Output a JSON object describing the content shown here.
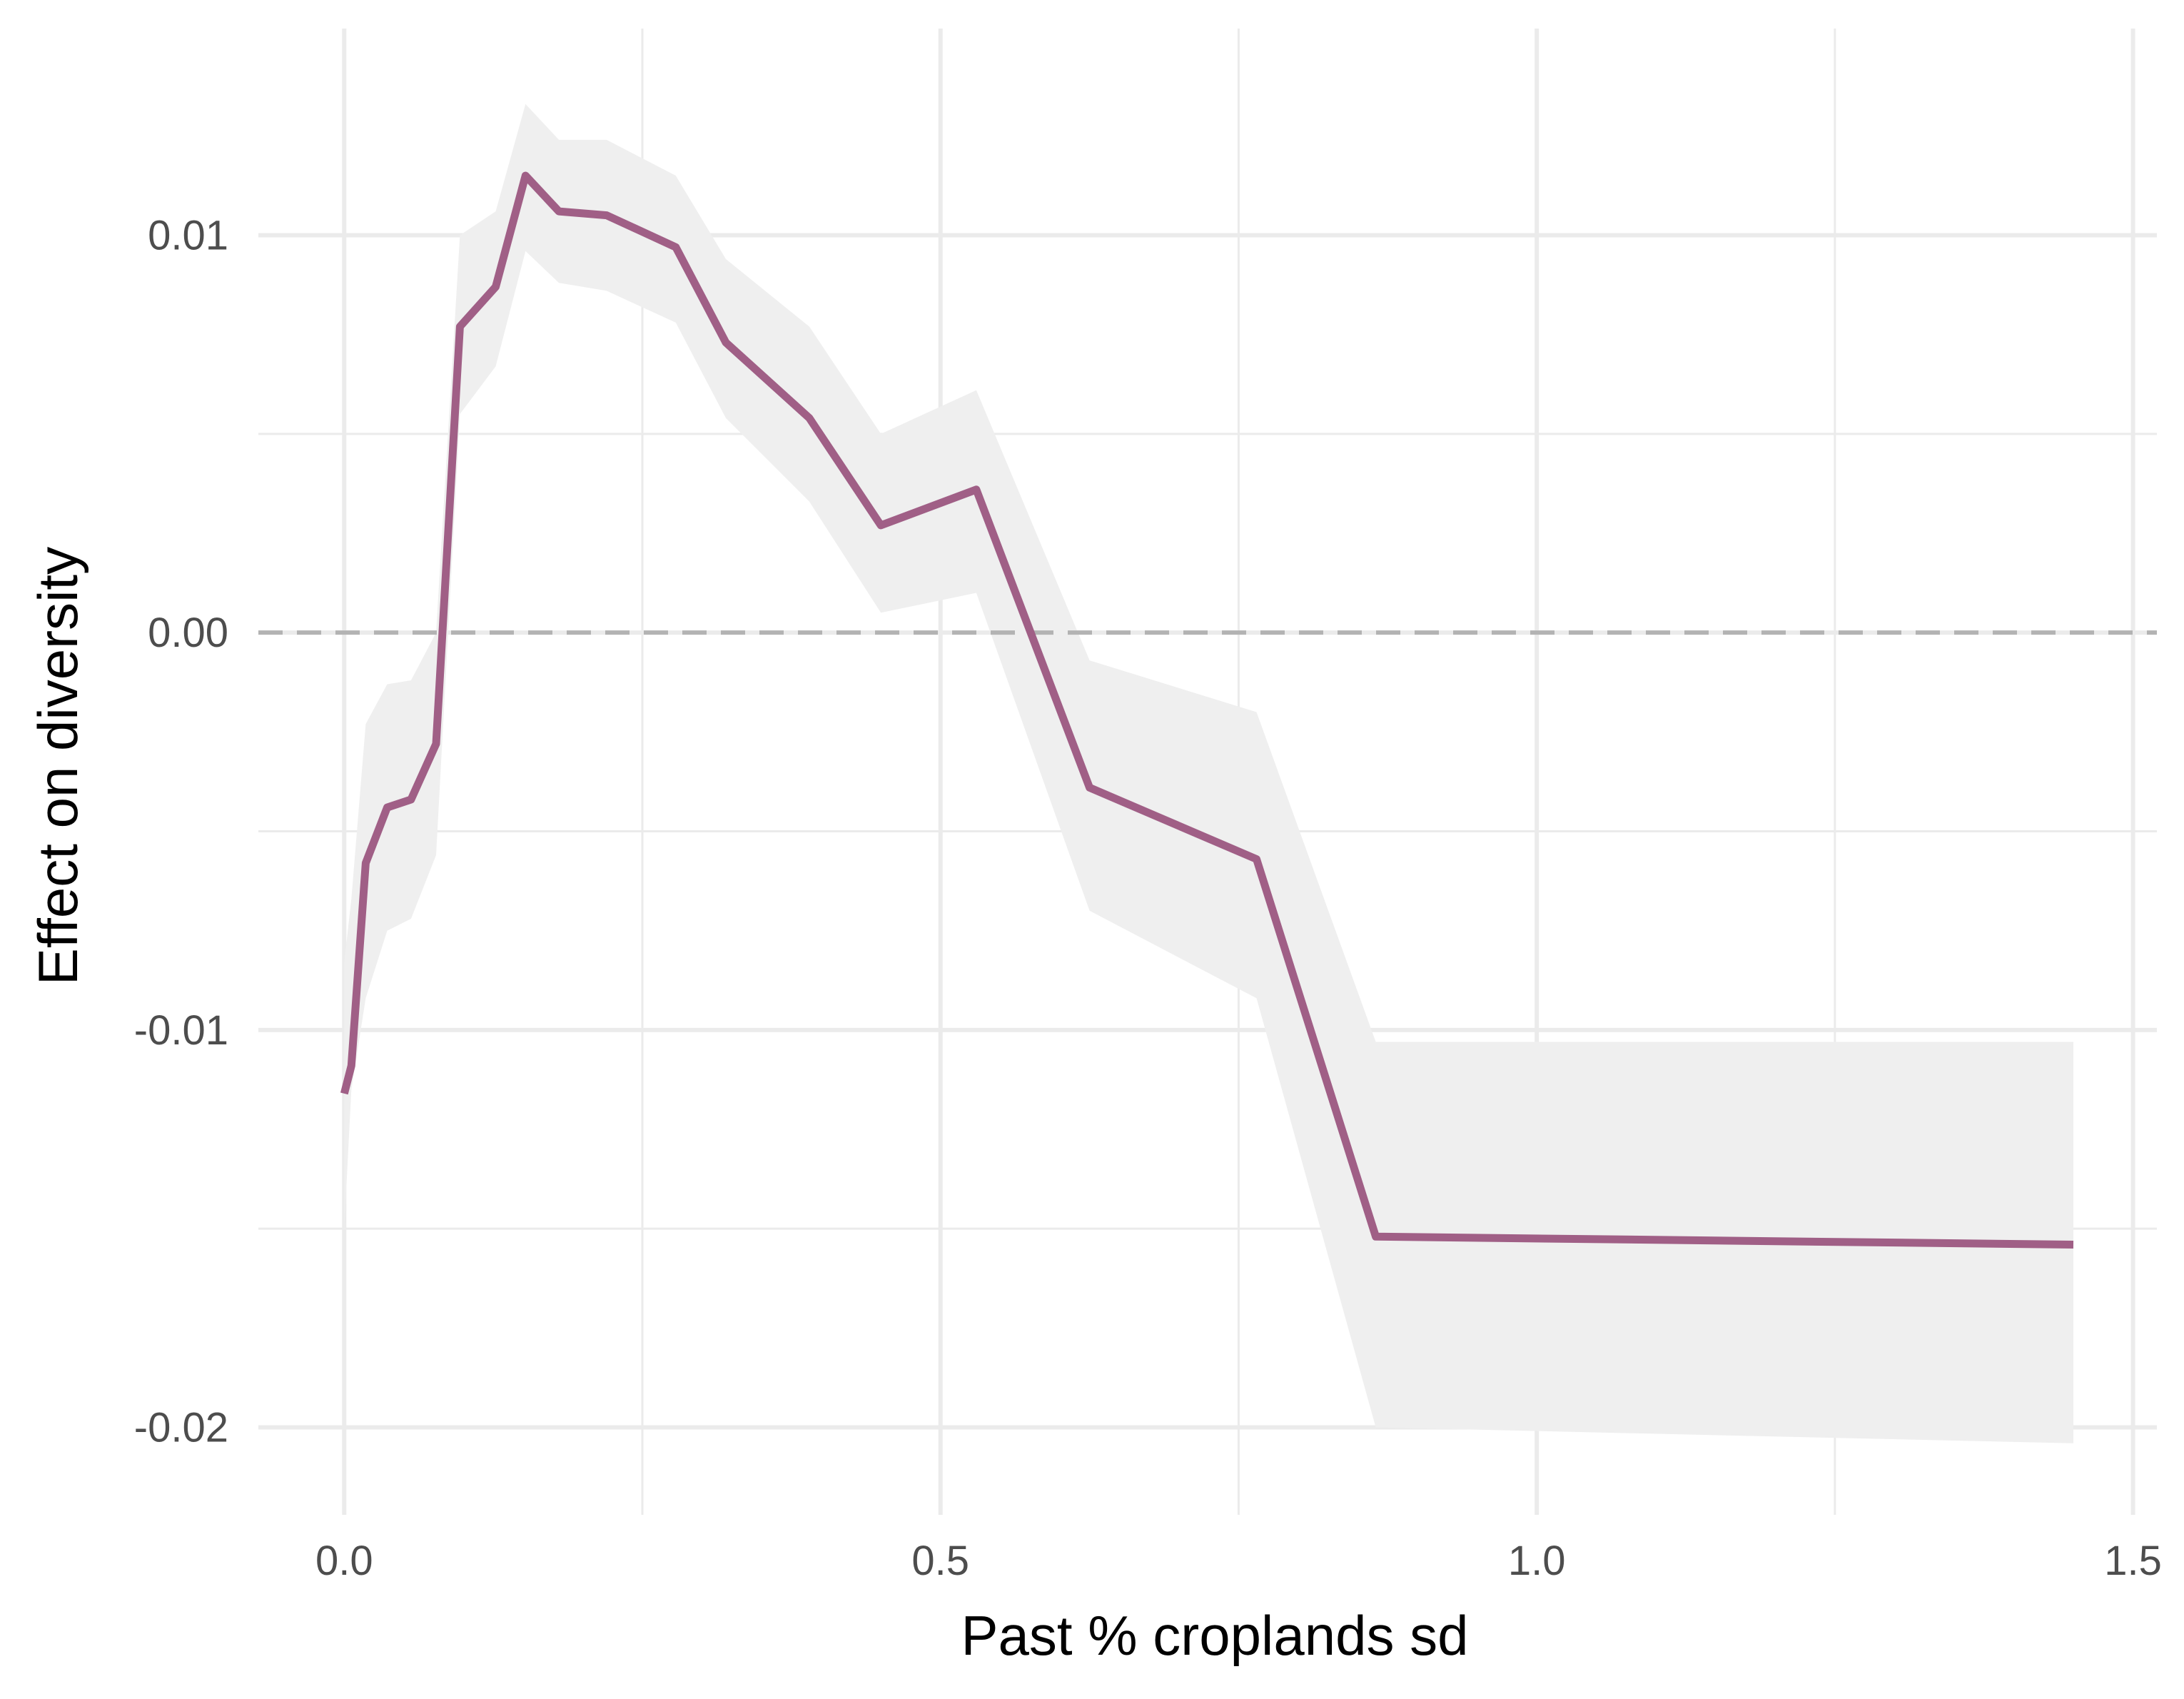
{
  "chart_data": {
    "type": "line",
    "title": "",
    "xlabel": "Past % croplands sd",
    "ylabel": "Effect on diversity",
    "xlim": [
      -0.072,
      1.52
    ],
    "ylim": [
      -0.0222,
      0.0152
    ],
    "xticks": [
      {
        "value": 0.0,
        "label": "0.0"
      },
      {
        "value": 0.5,
        "label": "0.5"
      },
      {
        "value": 1.0,
        "label": "1.0"
      },
      {
        "value": 1.5,
        "label": "1.5"
      }
    ],
    "x_minor_ticks": [
      0.25,
      0.75,
      1.25
    ],
    "yticks": [
      {
        "value": 0.01,
        "label": "0.01"
      },
      {
        "value": 0.0,
        "label": "0.00"
      },
      {
        "value": -0.01,
        "label": "-0.01"
      },
      {
        "value": -0.02,
        "label": "-0.02"
      }
    ],
    "y_minor_ticks": [
      0.005,
      -0.005,
      -0.015
    ],
    "grid": true,
    "reference_line": {
      "y": 0.0,
      "style": "dashed",
      "color": "#b3b3b3"
    },
    "colors": {
      "line": "#a05f86",
      "ribbon": "#efefef",
      "grid": "#ebebeb"
    },
    "series": [
      {
        "x": [
          0.0,
          0.006,
          0.018,
          0.036,
          0.056,
          0.077,
          0.097,
          0.127,
          0.152,
          0.18,
          0.22,
          0.278,
          0.32,
          0.39,
          0.45,
          0.53,
          0.625,
          0.765,
          0.865,
          1.45
        ],
        "y": [
          -0.0116,
          -0.0109,
          -0.0058,
          -0.0044,
          -0.0042,
          -0.0028,
          0.0077,
          0.0087,
          0.0115,
          0.0106,
          0.0105,
          0.0097,
          0.0073,
          0.0054,
          0.0027,
          0.0036,
          -0.0039,
          -0.0057,
          -0.0152,
          -0.0154
        ],
        "lower": [
          -0.015,
          -0.0115,
          -0.0092,
          -0.0075,
          -0.0072,
          -0.0056,
          0.0055,
          0.0067,
          0.0096,
          0.0088,
          0.0086,
          0.0078,
          0.0054,
          0.0033,
          0.0005,
          0.001,
          -0.007,
          -0.0092,
          -0.02,
          -0.0204
        ],
        "upper": [
          -0.0083,
          -0.0067,
          -0.0023,
          -0.0013,
          -0.0012,
          0.0,
          0.01,
          0.0106,
          0.0133,
          0.0124,
          0.0124,
          0.0115,
          0.0094,
          0.0077,
          0.005,
          0.0061,
          -0.0007,
          -0.002,
          -0.0103,
          -0.0103
        ]
      }
    ]
  }
}
